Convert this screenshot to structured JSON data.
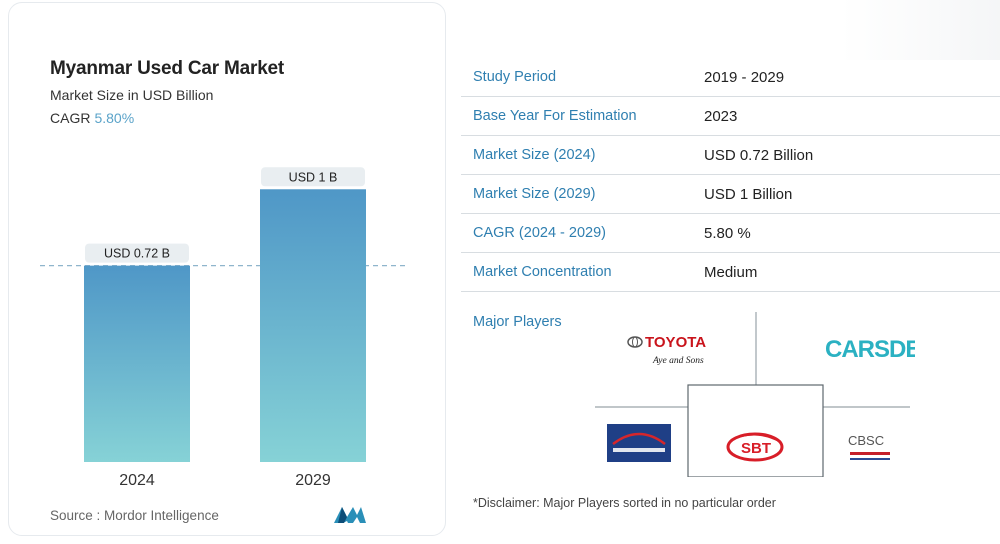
{
  "header": {
    "title": "Myanmar Used Car Market",
    "subtitle": "Market Size in USD Billion",
    "cagr_label": "CAGR",
    "cagr_value": "5.80%"
  },
  "chart_data": {
    "type": "bar",
    "categories": [
      "2024",
      "2029"
    ],
    "values": [
      0.72,
      1.0
    ],
    "data_labels": [
      "USD 0.72 B",
      "USD 1 B"
    ],
    "title": "Myanmar Used Car Market",
    "subtitle": "Market Size in USD Billion",
    "xlabel": "",
    "ylabel": "",
    "ylim": [
      0,
      1.1
    ],
    "reference_line_value": 0.72,
    "bar_gradient": [
      "#4f97c7",
      "#86d2d6"
    ]
  },
  "footer": {
    "source": "Source :  Mordor Intelligence"
  },
  "table": {
    "rows": [
      {
        "key": "Study Period",
        "value": "2019 - 2029"
      },
      {
        "key": "Base Year For Estimation",
        "value": "2023"
      },
      {
        "key": "Market Size (2024)",
        "value": "USD 0.72 Billion"
      },
      {
        "key": "Market Size (2029)",
        "value": "USD 1 Billion"
      },
      {
        "key": "CAGR (2024 - 2029)",
        "value": "5.80 %"
      },
      {
        "key": "Market Concentration",
        "value": "Medium"
      }
    ]
  },
  "players": {
    "label": "Major Players",
    "logos": [
      {
        "name": "toyota-aye-and-sons",
        "text": "TOYOTA",
        "subtext": "Aye and Sons"
      },
      {
        "name": "carsdb",
        "text": "CARSDB"
      },
      {
        "name": "blue-dealer",
        "text": ""
      },
      {
        "name": "sbt",
        "text": "SBT"
      },
      {
        "name": "cbsc",
        "text": "CBSC"
      }
    ]
  },
  "disclaimer": "*Disclaimer: Major Players sorted in no particular order",
  "colors": {
    "accent": "#2f7fb0",
    "cagr": "#5aa3c9",
    "bar_top": "#4f97c7",
    "bar_bottom": "#86d2d6",
    "label_bg": "#e9eef1"
  }
}
